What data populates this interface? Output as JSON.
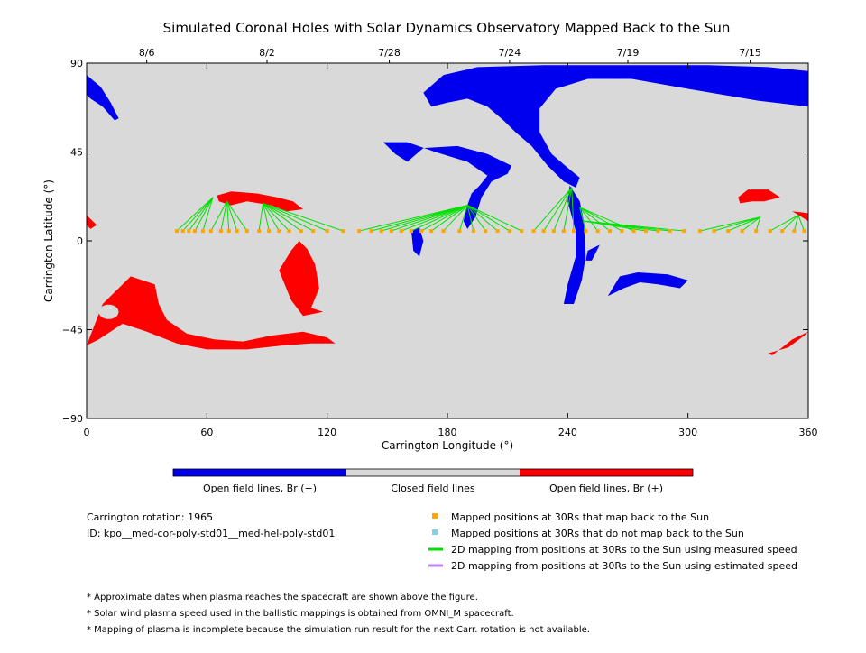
{
  "title": "Simulated Coronal Holes with Solar Dynamics Observatory Mapped Back to the Sun",
  "colors": {
    "background": "#d9d9d9",
    "negative": "#0000ee",
    "positive": "#ff0000",
    "closed": "#d9d9d9",
    "mapped_point": "#ffa500",
    "unmapped_point": "#87ceeb",
    "measured_line": "#00e000",
    "estimated_line": "#c080f0"
  },
  "chart_data": {
    "type": "map",
    "title": "Simulated Coronal Holes with Solar Dynamics Observatory Mapped Back to the Sun",
    "xlabel": "Carrington Longitude (°)",
    "ylabel": "Carrington Latitude (°)",
    "xlim": [
      0,
      360
    ],
    "ylim": [
      -90,
      90
    ],
    "x_ticks": [
      {
        "value": 0,
        "label": "0"
      },
      {
        "value": 60,
        "label": "60"
      },
      {
        "value": 120,
        "label": "120"
      },
      {
        "value": 180,
        "label": "180"
      },
      {
        "value": 240,
        "label": "240"
      },
      {
        "value": 300,
        "label": "300"
      },
      {
        "value": 360,
        "label": "360"
      }
    ],
    "y_ticks": [
      {
        "value": 90,
        "label": "90"
      },
      {
        "value": 45,
        "label": "45"
      },
      {
        "value": 0,
        "label": "0"
      },
      {
        "value": -45,
        "label": "−45"
      },
      {
        "value": -90,
        "label": "−90"
      }
    ],
    "date_ticks": [
      {
        "lon": 30,
        "label": "8/6"
      },
      {
        "lon": 90,
        "label": "8/2"
      },
      {
        "lon": 151,
        "label": "7/28"
      },
      {
        "lon": 211,
        "label": "7/24"
      },
      {
        "lon": 270,
        "label": "7/19"
      },
      {
        "lon": 331,
        "label": "7/15"
      }
    ],
    "regions": [
      {
        "polarity": "negative",
        "points": [
          [
            0,
            84
          ],
          [
            7,
            78
          ],
          [
            12,
            70
          ],
          [
            16,
            62
          ],
          [
            14,
            61
          ],
          [
            8,
            68
          ],
          [
            2,
            72
          ],
          [
            0,
            74
          ]
        ]
      },
      {
        "polarity": "negative",
        "points": [
          [
            168,
            75
          ],
          [
            178,
            84
          ],
          [
            195,
            88
          ],
          [
            228,
            89
          ],
          [
            265,
            89
          ],
          [
            310,
            89
          ],
          [
            340,
            88
          ],
          [
            360,
            86
          ],
          [
            360,
            68
          ],
          [
            335,
            71
          ],
          [
            300,
            77
          ],
          [
            272,
            82
          ],
          [
            250,
            82
          ],
          [
            234,
            77
          ],
          [
            226,
            67
          ],
          [
            226,
            55
          ],
          [
            232,
            44
          ],
          [
            240,
            37
          ],
          [
            246,
            32
          ],
          [
            244,
            27
          ],
          [
            238,
            30
          ],
          [
            230,
            38
          ],
          [
            222,
            48
          ],
          [
            214,
            55
          ],
          [
            208,
            61
          ],
          [
            200,
            68
          ],
          [
            190,
            72
          ],
          [
            180,
            70
          ],
          [
            172,
            68
          ]
        ]
      },
      {
        "polarity": "negative",
        "points": [
          [
            148,
            50
          ],
          [
            160,
            50
          ],
          [
            174,
            45
          ],
          [
            190,
            40
          ],
          [
            200,
            33
          ],
          [
            196,
            28
          ],
          [
            192,
            24
          ],
          [
            190,
            18
          ],
          [
            188,
            10
          ],
          [
            190,
            6
          ],
          [
            194,
            12
          ],
          [
            197,
            22
          ],
          [
            202,
            30
          ],
          [
            210,
            34
          ],
          [
            212,
            38
          ],
          [
            200,
            44
          ],
          [
            185,
            48
          ],
          [
            168,
            47
          ],
          [
            160,
            40
          ],
          [
            154,
            44
          ]
        ]
      },
      {
        "polarity": "negative",
        "points": [
          [
            162,
            5
          ],
          [
            166,
            7
          ],
          [
            168,
            0
          ],
          [
            166,
            -8
          ],
          [
            163,
            -5
          ]
        ]
      },
      {
        "polarity": "negative",
        "points": [
          [
            241,
            28
          ],
          [
            246,
            20
          ],
          [
            248,
            10
          ],
          [
            249,
            -8
          ],
          [
            247,
            -20
          ],
          [
            243,
            -32
          ],
          [
            238,
            -32
          ],
          [
            240,
            -22
          ],
          [
            244,
            -8
          ],
          [
            244,
            5
          ],
          [
            240,
            20
          ]
        ]
      },
      {
        "polarity": "negative",
        "points": [
          [
            250,
            -5
          ],
          [
            256,
            -2
          ],
          [
            252,
            -10
          ],
          [
            249,
            -10
          ]
        ]
      },
      {
        "polarity": "negative",
        "points": [
          [
            260,
            -28
          ],
          [
            266,
            -18
          ],
          [
            275,
            -16
          ],
          [
            290,
            -17
          ],
          [
            300,
            -20
          ],
          [
            296,
            -24
          ],
          [
            285,
            -22
          ],
          [
            276,
            -21
          ],
          [
            268,
            -24
          ]
        ]
      },
      {
        "polarity": "positive",
        "points": [
          [
            65,
            23
          ],
          [
            72,
            25
          ],
          [
            85,
            24
          ],
          [
            95,
            22
          ],
          [
            103,
            20
          ],
          [
            108,
            16
          ],
          [
            100,
            15
          ],
          [
            92,
            18
          ],
          [
            80,
            20
          ],
          [
            72,
            18
          ],
          [
            66,
            20
          ]
        ]
      },
      {
        "polarity": "positive",
        "points": [
          [
            0,
            13
          ],
          [
            3,
            10
          ],
          [
            5,
            8
          ],
          [
            2,
            6
          ],
          [
            0,
            8
          ]
        ]
      },
      {
        "polarity": "positive",
        "points": [
          [
            0,
            -53
          ],
          [
            8,
            -32
          ],
          [
            22,
            -18
          ],
          [
            34,
            -22
          ],
          [
            36,
            -32
          ],
          [
            40,
            -40
          ],
          [
            50,
            -47
          ],
          [
            64,
            -50
          ],
          [
            78,
            -51
          ],
          [
            92,
            -48
          ],
          [
            108,
            -46
          ],
          [
            120,
            -49
          ],
          [
            124,
            -52
          ],
          [
            112,
            -52
          ],
          [
            98,
            -53
          ],
          [
            80,
            -55
          ],
          [
            60,
            -55
          ],
          [
            45,
            -52
          ],
          [
            30,
            -46
          ],
          [
            18,
            -42
          ],
          [
            6,
            -50
          ]
        ]
      },
      {
        "polarity": "positive",
        "points": [
          [
            96,
            -15
          ],
          [
            102,
            -5
          ],
          [
            106,
            0
          ],
          [
            110,
            -4
          ],
          [
            114,
            -12
          ],
          [
            116,
            -24
          ],
          [
            112,
            -34
          ],
          [
            118,
            -36
          ],
          [
            108,
            -38
          ],
          [
            102,
            -30
          ]
        ]
      },
      {
        "polarity": "positive",
        "points": [
          [
            325,
            22
          ],
          [
            330,
            26
          ],
          [
            340,
            26
          ],
          [
            346,
            22
          ],
          [
            338,
            20
          ],
          [
            332,
            20
          ],
          [
            326,
            19
          ]
        ]
      },
      {
        "polarity": "positive",
        "points": [
          [
            352,
            15
          ],
          [
            360,
            10
          ],
          [
            360,
            14
          ]
        ]
      },
      {
        "polarity": "positive",
        "points": [
          [
            340,
            -57
          ],
          [
            350,
            -54
          ],
          [
            358,
            -48
          ],
          [
            360,
            -46
          ],
          [
            352,
            -50
          ],
          [
            342,
            -58
          ]
        ]
      }
    ],
    "footpoints": [
      {
        "lon": 63,
        "lat": 22
      },
      {
        "lon": 70,
        "lat": 20
      },
      {
        "lon": 88,
        "lat": 19
      },
      {
        "lon": 190,
        "lat": 18
      },
      {
        "lon": 242,
        "lat": 27
      },
      {
        "lon": 246,
        "lat": 17
      },
      {
        "lon": 248,
        "lat": 10
      },
      {
        "lon": 336,
        "lat": 12
      },
      {
        "lon": 355,
        "lat": 13
      }
    ],
    "mapped_points": [
      {
        "lon": 45,
        "lat": 5,
        "foot": 0
      },
      {
        "lon": 48,
        "lat": 5,
        "foot": 0
      },
      {
        "lon": 51,
        "lat": 5,
        "foot": 0
      },
      {
        "lon": 54,
        "lat": 5,
        "foot": 0
      },
      {
        "lon": 58,
        "lat": 5,
        "foot": 0
      },
      {
        "lon": 62,
        "lat": 5,
        "foot": 1
      },
      {
        "lon": 67,
        "lat": 5,
        "foot": 1
      },
      {
        "lon": 71,
        "lat": 5,
        "foot": 1
      },
      {
        "lon": 75,
        "lat": 5,
        "foot": 1
      },
      {
        "lon": 80,
        "lat": 5,
        "foot": 1
      },
      {
        "lon": 86,
        "lat": 5,
        "foot": 2
      },
      {
        "lon": 91,
        "lat": 5,
        "foot": 2
      },
      {
        "lon": 96,
        "lat": 5,
        "foot": 2
      },
      {
        "lon": 101,
        "lat": 5,
        "foot": 2
      },
      {
        "lon": 107,
        "lat": 5,
        "foot": 2
      },
      {
        "lon": 113,
        "lat": 5,
        "foot": 2
      },
      {
        "lon": 120,
        "lat": 5,
        "foot": 2
      },
      {
        "lon": 128,
        "lat": 5,
        "foot": 2
      },
      {
        "lon": 136,
        "lat": 5,
        "foot": 3
      },
      {
        "lon": 142,
        "lat": 5,
        "foot": 3
      },
      {
        "lon": 147,
        "lat": 5,
        "foot": 3
      },
      {
        "lon": 152,
        "lat": 5,
        "foot": 3
      },
      {
        "lon": 157,
        "lat": 5,
        "foot": 3
      },
      {
        "lon": 162,
        "lat": 5,
        "foot": 3
      },
      {
        "lon": 167,
        "lat": 5,
        "foot": 3
      },
      {
        "lon": 172,
        "lat": 5,
        "foot": 3
      },
      {
        "lon": 178,
        "lat": 5,
        "foot": 3
      },
      {
        "lon": 186,
        "lat": 5,
        "foot": 3
      },
      {
        "lon": 193,
        "lat": 5,
        "foot": 3
      },
      {
        "lon": 199,
        "lat": 5,
        "foot": 3
      },
      {
        "lon": 205,
        "lat": 5,
        "foot": 3
      },
      {
        "lon": 211,
        "lat": 5,
        "foot": 3
      },
      {
        "lon": 217,
        "lat": 5,
        "foot": 3
      },
      {
        "lon": 223,
        "lat": 5,
        "foot": 4
      },
      {
        "lon": 228,
        "lat": 5,
        "foot": 4
      },
      {
        "lon": 233,
        "lat": 5,
        "foot": 4
      },
      {
        "lon": 238,
        "lat": 5,
        "foot": 4
      },
      {
        "lon": 243,
        "lat": 5,
        "foot": 4
      },
      {
        "lon": 249,
        "lat": 5,
        "foot": 5
      },
      {
        "lon": 255,
        "lat": 5,
        "foot": 5
      },
      {
        "lon": 261,
        "lat": 5,
        "foot": 5
      },
      {
        "lon": 267,
        "lat": 5,
        "foot": 5
      },
      {
        "lon": 273,
        "lat": 5,
        "foot": 5
      },
      {
        "lon": 279,
        "lat": 5,
        "foot": 6
      },
      {
        "lon": 285,
        "lat": 5,
        "foot": 6
      },
      {
        "lon": 291,
        "lat": 5,
        "foot": 6
      },
      {
        "lon": 298,
        "lat": 5,
        "foot": 6
      },
      {
        "lon": 306,
        "lat": 5,
        "foot": 7
      },
      {
        "lon": 313,
        "lat": 5,
        "foot": 7
      },
      {
        "lon": 320,
        "lat": 5,
        "foot": 7
      },
      {
        "lon": 327,
        "lat": 5,
        "foot": 7
      },
      {
        "lon": 334,
        "lat": 5,
        "foot": 7
      },
      {
        "lon": 341,
        "lat": 5,
        "foot": 8
      },
      {
        "lon": 347,
        "lat": 5,
        "foot": 8
      },
      {
        "lon": 353,
        "lat": 5,
        "foot": 8
      },
      {
        "lon": 358,
        "lat": 5,
        "foot": 8
      }
    ]
  },
  "colorbar": {
    "segments": [
      {
        "label": "Open field lines, Br (−)",
        "color": "#0000ee"
      },
      {
        "label": "Closed field lines",
        "color": "#d9d9d9"
      },
      {
        "label": "Open field lines, Br (+)",
        "color": "#ff0000"
      }
    ]
  },
  "info": {
    "rotation": "Carrington rotation: 1965",
    "id": "ID: kpo__med-cor-poly-std01__med-hel-poly-std01"
  },
  "legend": [
    {
      "kind": "square",
      "color": "#ffa500",
      "label": "Mapped positions at 30Rs that map back to the Sun"
    },
    {
      "kind": "square",
      "color": "#87ceeb",
      "label": "Mapped positions at 30Rs that do not map back to the Sun"
    },
    {
      "kind": "line",
      "color": "#00e000",
      "label": "2D mapping from positions at 30Rs to the Sun using measured speed"
    },
    {
      "kind": "line",
      "color": "#c080f0",
      "label": "2D mapping from positions at 30Rs to the Sun using estimated speed"
    }
  ],
  "footnotes": [
    "* Approximate dates when plasma reaches the spacecraft are shown above the figure.",
    "* Solar wind plasma speed used in the ballistic mappings is obtained from OMNI_M spacecraft.",
    "* Mapping of plasma is incomplete because the simulation run result for the next Carr. rotation is not available."
  ]
}
